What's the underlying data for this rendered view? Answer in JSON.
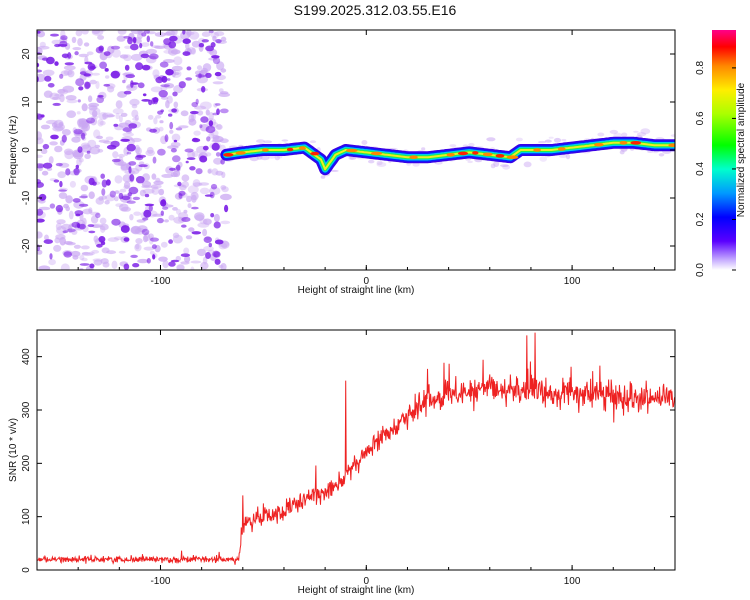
{
  "title": "S199.2025.312.03.55.E16",
  "colors": {
    "snr_line": "#ee2222",
    "noise_purple": "#7a1ce6",
    "noise_light": "#c9a6f2",
    "frame": "#000000"
  },
  "chart_data": [
    {
      "type": "heatmap",
      "name": "spectrogram",
      "xlabel": "Height of straight line (km)",
      "ylabel": "Frequency (Hz)",
      "xlim": [
        -160,
        150
      ],
      "ylim": [
        -25,
        25
      ],
      "xticks": [
        -100,
        0,
        100
      ],
      "yticks": [
        -20,
        -10,
        0,
        10,
        20
      ],
      "xtick_labels": [
        "-100",
        "0",
        "100"
      ],
      "ytick_labels": [
        "-20",
        "-10",
        "0",
        "10",
        "20"
      ],
      "noise_region_x": [
        -160,
        -68
      ],
      "signal_start_x": -68,
      "ridge_x": [
        -68,
        -60,
        -50,
        -40,
        -30,
        -22,
        -20,
        -15,
        -10,
        0,
        10,
        20,
        30,
        40,
        50,
        60,
        70,
        75,
        80,
        90,
        100,
        110,
        120,
        130,
        140,
        150
      ],
      "ridge_freq": [
        -1.0,
        -0.5,
        0.0,
        0.0,
        0.5,
        -2.0,
        -4.0,
        -1.0,
        0.0,
        -0.5,
        -1.0,
        -1.5,
        -1.5,
        -1.0,
        -0.5,
        -1.0,
        -1.5,
        0.0,
        0.0,
        0.0,
        0.5,
        1.0,
        1.5,
        1.5,
        1.0,
        1.0
      ],
      "colorbar": {
        "label": "Normalized spectral amplitude",
        "range": [
          0.0,
          0.95
        ],
        "ticks": [
          0.0,
          0.2,
          0.4,
          0.6,
          0.8
        ],
        "tick_labels": [
          "0.0",
          "0.2",
          "0.4",
          "0.6",
          "0.8"
        ]
      }
    },
    {
      "type": "line",
      "name": "snr",
      "xlabel": "Height of straight line (km)",
      "ylabel": "SNR (10 * v/v)",
      "xlim": [
        -160,
        150
      ],
      "ylim": [
        0,
        450
      ],
      "xticks": [
        -100,
        0,
        100
      ],
      "yticks": [
        0,
        100,
        200,
        300,
        400
      ],
      "xtick_labels": [
        "-100",
        "0",
        "100"
      ],
      "ytick_labels": [
        "0",
        "100",
        "200",
        "300",
        "400"
      ],
      "trend_x": [
        -160,
        -62,
        -60,
        -50,
        -40,
        -30,
        -20,
        -10,
        0,
        10,
        20,
        30,
        40,
        50,
        60,
        70,
        80,
        90,
        100,
        110,
        120,
        130,
        140,
        150
      ],
      "trend_y": [
        20,
        20,
        85,
        100,
        110,
        130,
        150,
        175,
        220,
        260,
        290,
        315,
        330,
        335,
        340,
        340,
        335,
        330,
        330,
        330,
        325,
        325,
        325,
        320
      ],
      "spikes": [
        {
          "x": -10,
          "y": 355
        },
        {
          "x": -60,
          "y": 140
        },
        {
          "x": 82,
          "y": 445
        },
        {
          "x": 78,
          "y": 440
        }
      ],
      "noise_amplitude": [
        8,
        25,
        35
      ]
    }
  ]
}
